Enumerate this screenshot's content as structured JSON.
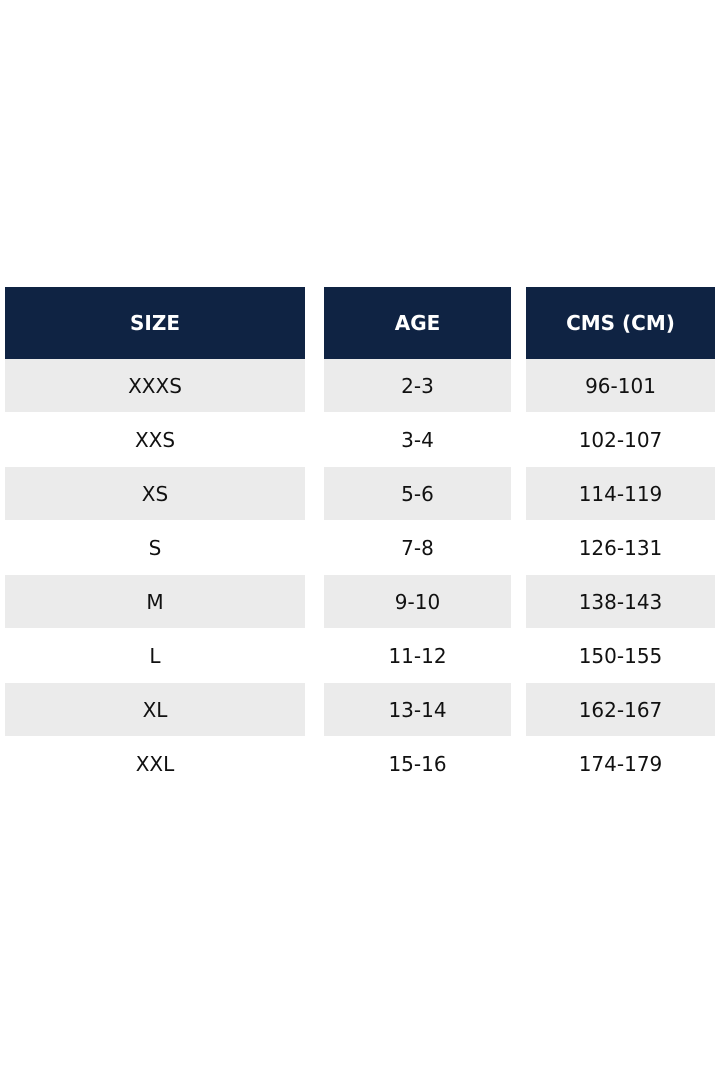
{
  "table": {
    "header": [
      "SIZE",
      "AGE",
      "CMS (CM)"
    ],
    "rows": [
      [
        "XXXS",
        "2-3",
        "96-101"
      ],
      [
        "XXS",
        "3-4",
        "102-107"
      ],
      [
        "XS",
        "5-6",
        "114-119"
      ],
      [
        "S",
        "7-8",
        "126-131"
      ],
      [
        "M",
        "9-10",
        "138-143"
      ],
      [
        "L",
        "11-12",
        "150-155"
      ],
      [
        "XL",
        "13-14",
        "162-167"
      ],
      [
        "XXL",
        "15-16",
        "174-179"
      ]
    ]
  }
}
